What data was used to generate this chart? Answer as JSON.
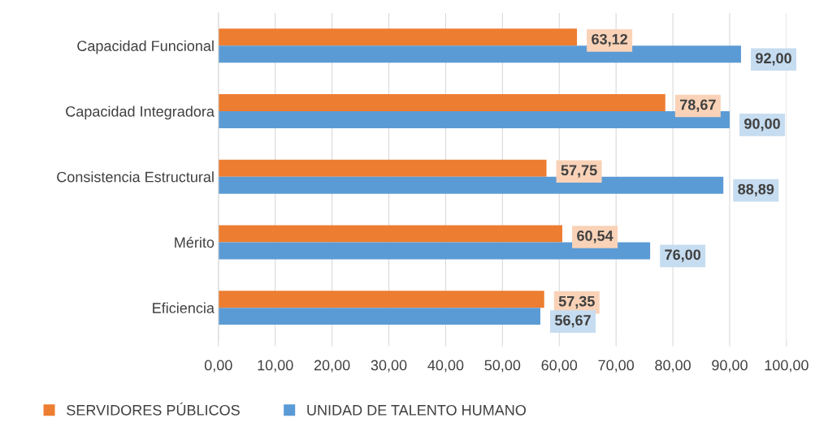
{
  "chart_data": {
    "type": "bar",
    "orientation": "horizontal",
    "categories": [
      "Capacidad Funcional",
      "Capacidad Integradora",
      "Consistencia Estructural",
      "Mérito",
      "Eficiencia"
    ],
    "series": [
      {
        "name": "SERVIDORES PÚBLICOS",
        "color": "#ed7d31",
        "values": [
          63.12,
          78.67,
          57.75,
          60.54,
          57.35
        ],
        "value_labels": [
          "63,12",
          "78,67",
          "57,75",
          "60,54",
          "57,35"
        ]
      },
      {
        "name": "UNIDAD DE TALENTO HUMANO",
        "color": "#5b9bd5",
        "values": [
          92.0,
          90.0,
          88.89,
          76.0,
          56.67
        ],
        "value_labels": [
          "92,00",
          "90,00",
          "88,89",
          "76,00",
          "56,67"
        ]
      }
    ],
    "xlim": [
      0,
      100
    ],
    "xticks": [
      {
        "value": 0,
        "label": "0,00"
      },
      {
        "value": 10,
        "label": "10,00"
      },
      {
        "value": 20,
        "label": "20,00"
      },
      {
        "value": 30,
        "label": "30,00"
      },
      {
        "value": 40,
        "label": "40,00"
      },
      {
        "value": 50,
        "label": "50,00"
      },
      {
        "value": 60,
        "label": "60,00"
      },
      {
        "value": 70,
        "label": "70,00"
      },
      {
        "value": 80,
        "label": "80,00"
      },
      {
        "value": 90,
        "label": "90,00"
      },
      {
        "value": 100,
        "label": "100,00"
      }
    ],
    "grid": "x",
    "legend": "bottom"
  }
}
